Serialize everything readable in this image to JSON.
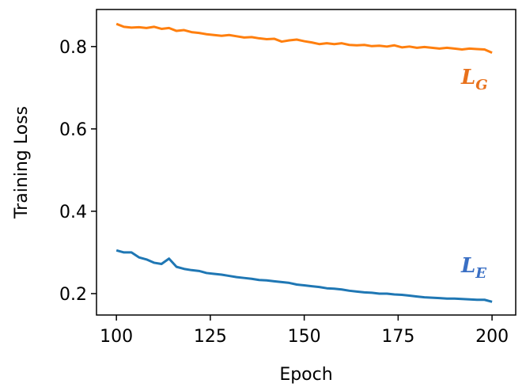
{
  "chart_data": {
    "type": "line",
    "xlabel": "Epoch",
    "ylabel": "Training Loss",
    "x": [
      100,
      102,
      104,
      106,
      108,
      110,
      112,
      114,
      116,
      118,
      120,
      122,
      124,
      126,
      128,
      130,
      132,
      134,
      136,
      138,
      140,
      142,
      144,
      146,
      148,
      150,
      152,
      154,
      156,
      158,
      160,
      162,
      164,
      166,
      168,
      170,
      172,
      174,
      176,
      178,
      180,
      182,
      184,
      186,
      188,
      190,
      192,
      194,
      196,
      198,
      200
    ],
    "series": [
      {
        "name": "L_G",
        "color": "#ff7f0e",
        "values": [
          0.855,
          0.848,
          0.846,
          0.847,
          0.845,
          0.848,
          0.843,
          0.845,
          0.838,
          0.84,
          0.835,
          0.833,
          0.83,
          0.828,
          0.826,
          0.828,
          0.825,
          0.822,
          0.823,
          0.82,
          0.818,
          0.819,
          0.812,
          0.815,
          0.817,
          0.813,
          0.81,
          0.806,
          0.808,
          0.806,
          0.808,
          0.804,
          0.803,
          0.804,
          0.801,
          0.802,
          0.8,
          0.803,
          0.798,
          0.8,
          0.797,
          0.799,
          0.797,
          0.795,
          0.797,
          0.795,
          0.793,
          0.795,
          0.794,
          0.793,
          0.785
        ]
      },
      {
        "name": "L_E",
        "color": "#1f77b4",
        "values": [
          0.305,
          0.3,
          0.3,
          0.288,
          0.283,
          0.275,
          0.272,
          0.285,
          0.265,
          0.26,
          0.257,
          0.255,
          0.25,
          0.248,
          0.246,
          0.243,
          0.24,
          0.238,
          0.236,
          0.233,
          0.232,
          0.23,
          0.228,
          0.226,
          0.222,
          0.22,
          0.218,
          0.216,
          0.213,
          0.212,
          0.21,
          0.207,
          0.205,
          0.203,
          0.202,
          0.2,
          0.2,
          0.198,
          0.197,
          0.195,
          0.193,
          0.191,
          0.19,
          0.189,
          0.188,
          0.188,
          0.187,
          0.186,
          0.185,
          0.185,
          0.18
        ]
      }
    ],
    "annotations": [
      {
        "text": "L",
        "sub": "G",
        "color": "#e8711c"
      },
      {
        "text": "L",
        "sub": "E",
        "color": "#3a6fc4"
      }
    ],
    "xlim": [
      94.7,
      206.3
    ],
    "ylim": [
      0.148,
      0.89
    ],
    "xticks": [
      100,
      125,
      150,
      175,
      200
    ],
    "yticks": [
      0.2,
      0.4,
      0.6,
      0.8
    ],
    "grid": false
  }
}
